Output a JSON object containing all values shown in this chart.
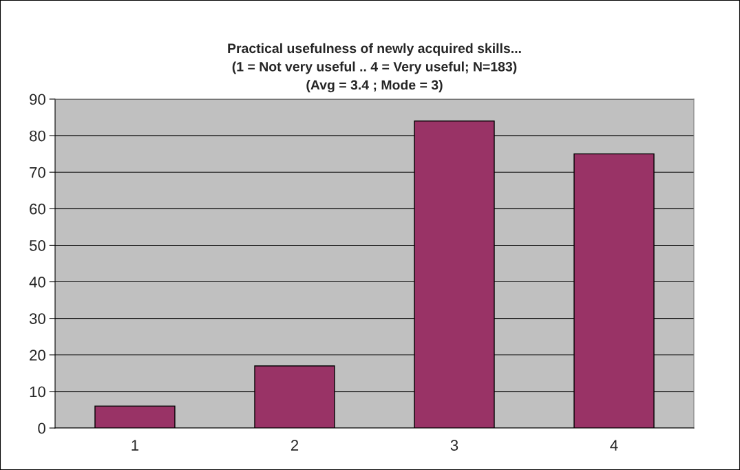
{
  "chart_data": {
    "type": "bar",
    "title": "Practical usefulness of newly acquired skills...\n(1 = Not very useful .. 4 = Very useful; N=183)\n(Avg = 3.4 ; Mode = 3)",
    "categories": [
      "1",
      "2",
      "3",
      "4"
    ],
    "values": [
      6,
      17,
      84,
      75
    ],
    "color": "#993366",
    "ylim": [
      0,
      90
    ],
    "yticks": [
      0,
      10,
      20,
      30,
      40,
      50,
      60,
      70,
      80,
      90
    ],
    "grid": "y",
    "legend": false
  }
}
